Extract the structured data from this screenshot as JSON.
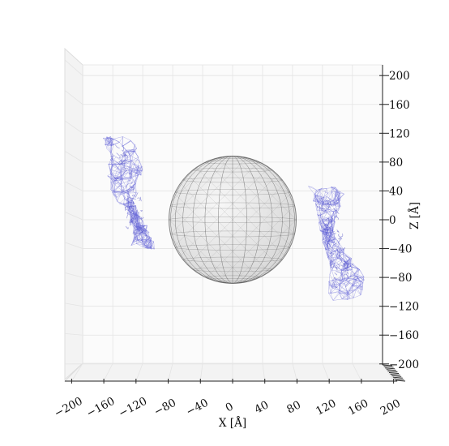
{
  "chart_data": {
    "type": "scatter",
    "title": "",
    "xlabel": "X [Å]",
    "zlabel": "Z [Å]",
    "xlim": [
      -220,
      220
    ],
    "zlim": [
      -220,
      220
    ],
    "x_ticks": [
      -200,
      -160,
      -120,
      -80,
      -40,
      0,
      40,
      80,
      120,
      160,
      200
    ],
    "z_ticks": [
      200,
      160,
      120,
      80,
      40,
      0,
      -40,
      -80,
      -120,
      -160,
      -200
    ],
    "grid": true,
    "view": "3d-front",
    "sphere": {
      "center": [
        0,
        0
      ],
      "radius": 85,
      "color": "#e6e6e6",
      "edge_color": "#555555"
    },
    "mesh_clusters": [
      {
        "name": "",
        "center": [
          -140,
          50
        ],
        "extent_x": [
          -178,
          -100
        ],
        "extent_z": [
          -40,
          115
        ],
        "tilt": "down-right",
        "color": "#6a6ad8"
      },
      {
        "name": "",
        "center": [
          135,
          -35
        ],
        "extent_x": [
          97,
          175
        ],
        "extent_z": [
          -110,
          45
        ],
        "tilt": "down-right",
        "color": "#6a6ad8"
      }
    ],
    "colors": {
      "pane": "#f2f2f2",
      "grid": "#e4e4e4",
      "mesh": "#6a6ad8"
    }
  }
}
